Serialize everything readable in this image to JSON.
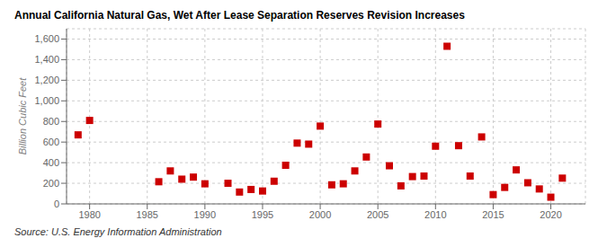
{
  "chart_data": {
    "type": "scatter",
    "title": "Annual California Natural Gas, Wet After Lease Separation Reserves Revision Increases",
    "ylabel": "Billion Cubic Feet",
    "annotations": [
      "Source: U.S. Energy Information Administration"
    ],
    "x": [
      1979,
      1980,
      1986,
      1987,
      1988,
      1989,
      1990,
      1992,
      1993,
      1994,
      1995,
      1996,
      1997,
      1998,
      1999,
      2000,
      2001,
      2002,
      2003,
      2004,
      2005,
      2006,
      2007,
      2008,
      2009,
      2010,
      2011,
      2012,
      2013,
      2014,
      2015,
      2016,
      2017,
      2018,
      2019,
      2020,
      2021
    ],
    "values": [
      670,
      810,
      215,
      320,
      240,
      260,
      195,
      200,
      115,
      140,
      125,
      220,
      375,
      590,
      580,
      755,
      185,
      195,
      320,
      455,
      775,
      370,
      175,
      265,
      270,
      560,
      1530,
      565,
      270,
      650,
      90,
      160,
      330,
      205,
      145,
      65,
      250
    ],
    "color": "#cc0000",
    "marker": "square",
    "xlim": [
      1978,
      2023
    ],
    "xticks": [
      1980,
      1985,
      1990,
      1995,
      2000,
      2005,
      2010,
      2015,
      2020
    ],
    "ylim": [
      0,
      1700
    ],
    "yticks": [
      0,
      200,
      400,
      600,
      800,
      {
        "value": 1000,
        "label": "1,000"
      },
      {
        "value": 1200,
        "label": "1,200"
      },
      {
        "value": 1400,
        "label": "1,400"
      },
      {
        "value": 1600,
        "label": "1,600"
      }
    ],
    "grid": true
  }
}
